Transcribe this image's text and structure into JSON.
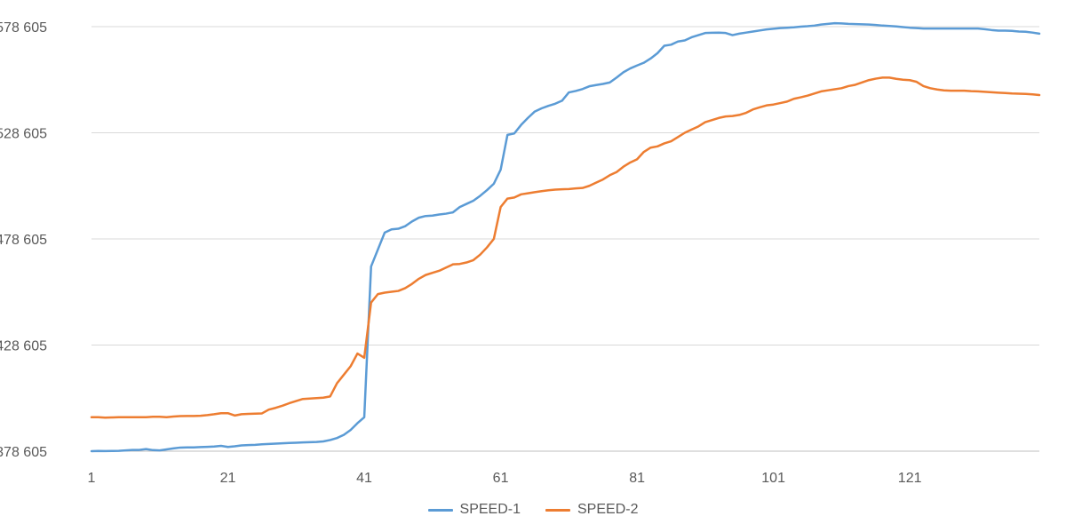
{
  "chart_data": {
    "type": "line",
    "title": "",
    "xlabel": "",
    "ylabel": "",
    "x_ticks": [
      "1",
      "21",
      "41",
      "61",
      "81",
      "101",
      "121"
    ],
    "x_tick_values": [
      1,
      21,
      41,
      61,
      81,
      101,
      121
    ],
    "y_ticks": [
      "378 605",
      "428 605",
      "478 605",
      "528 605",
      "578 605"
    ],
    "y_tick_values": [
      378605,
      428605,
      478605,
      528605,
      578605
    ],
    "xlim": [
      1,
      140
    ],
    "ylim": [
      378605,
      578605
    ],
    "grid": true,
    "legend_position": "bottom",
    "colors": {
      "SPEED-1": "#5b9bd5",
      "SPEED-2": "#ed7d31",
      "gridline": "#d9d9d9",
      "axis": "#bfbfbf",
      "text": "#595959"
    },
    "series": [
      {
        "name": "SPEED-1",
        "x": [
          1,
          2,
          3,
          4,
          5,
          6,
          7,
          8,
          9,
          10,
          11,
          12,
          13,
          14,
          15,
          16,
          17,
          18,
          19,
          20,
          21,
          22,
          23,
          24,
          25,
          26,
          27,
          28,
          29,
          30,
          31,
          32,
          33,
          34,
          35,
          36,
          37,
          38,
          39,
          40,
          41,
          42,
          43,
          44,
          45,
          46,
          47,
          48,
          49,
          50,
          51,
          52,
          53,
          54,
          55,
          56,
          57,
          58,
          59,
          60,
          61,
          62,
          63,
          64,
          65,
          66,
          67,
          68,
          69,
          70,
          71,
          72,
          73,
          74,
          75,
          76,
          77,
          78,
          79,
          80,
          81,
          82,
          83,
          84,
          85,
          86,
          87,
          88,
          89,
          90,
          91,
          92,
          93,
          94,
          95,
          96,
          97,
          98,
          99,
          100,
          101,
          102,
          103,
          104,
          105,
          106,
          107,
          108,
          109,
          110,
          111,
          112,
          113,
          114,
          115,
          116,
          117,
          118,
          119,
          120,
          121,
          122,
          123,
          124,
          125,
          126,
          127,
          128,
          129,
          130,
          131,
          132,
          133,
          134,
          135,
          136,
          137,
          138,
          139,
          140
        ],
        "values": [
          378605,
          378705,
          378655,
          378705,
          378755,
          378955,
          379205,
          379205,
          379605,
          379105,
          378955,
          379455,
          379905,
          380305,
          380405,
          380405,
          380555,
          380655,
          380805,
          381105,
          380605,
          380905,
          381305,
          381505,
          381605,
          381855,
          382005,
          382155,
          382305,
          382455,
          382605,
          382755,
          382855,
          382955,
          383205,
          383855,
          384805,
          386305,
          388605,
          391805,
          394605,
          465605,
          473605,
          481605,
          483105,
          483405,
          484605,
          486805,
          488605,
          489405,
          489605,
          490105,
          490505,
          491105,
          493605,
          495105,
          496605,
          498905,
          501605,
          504605,
          511205,
          527605,
          528305,
          532305,
          535605,
          538605,
          540105,
          541305,
          542305,
          543705,
          547605,
          548305,
          549205,
          550505,
          551105,
          551605,
          552305,
          554605,
          557105,
          558905,
          560305,
          561605,
          563605,
          566105,
          569605,
          570105,
          571605,
          572105,
          573605,
          574605,
          575605,
          575705,
          575805,
          575605,
          574605,
          575305,
          575805,
          576305,
          576805,
          577305,
          577605,
          577905,
          578105,
          578305,
          578605,
          578805,
          579105,
          579605,
          579905,
          580205,
          580105,
          579905,
          579805,
          579705,
          579605,
          579405,
          579105,
          578905,
          578705,
          578405,
          578105,
          577905,
          577705,
          577705,
          577705,
          577705,
          577705,
          577705,
          577705,
          577705,
          577705,
          577405,
          577005,
          576705,
          576705,
          576605,
          576305,
          576205,
          575805,
          575305
        ]
      },
      {
        "name": "SPEED-2",
        "x": [
          1,
          2,
          3,
          4,
          5,
          6,
          7,
          8,
          9,
          10,
          11,
          12,
          13,
          14,
          15,
          16,
          17,
          18,
          19,
          20,
          21,
          22,
          23,
          24,
          25,
          26,
          27,
          28,
          29,
          30,
          31,
          32,
          33,
          34,
          35,
          36,
          37,
          38,
          39,
          40,
          41,
          42,
          43,
          44,
          45,
          46,
          47,
          48,
          49,
          50,
          51,
          52,
          53,
          54,
          55,
          56,
          57,
          58,
          59,
          60,
          61,
          62,
          63,
          64,
          65,
          66,
          67,
          68,
          69,
          70,
          71,
          72,
          73,
          74,
          75,
          76,
          77,
          78,
          79,
          80,
          81,
          82,
          83,
          84,
          85,
          86,
          87,
          88,
          89,
          90,
          91,
          92,
          93,
          94,
          95,
          96,
          97,
          98,
          99,
          100,
          101,
          102,
          103,
          104,
          105,
          106,
          107,
          108,
          109,
          110,
          111,
          112,
          113,
          114,
          115,
          116,
          117,
          118,
          119,
          120,
          121,
          122,
          123,
          124,
          125,
          126,
          127,
          128,
          129,
          130,
          131,
          132,
          133,
          134,
          135,
          136,
          137,
          138,
          139,
          140
        ],
        "values": [
          394605,
          394605,
          394405,
          394505,
          394605,
          394605,
          394605,
          394605,
          394605,
          394805,
          394805,
          394605,
          394905,
          395105,
          395205,
          395205,
          395305,
          395605,
          396005,
          396505,
          396505,
          395405,
          396005,
          396205,
          396305,
          396405,
          398205,
          399005,
          400005,
          401205,
          402205,
          403205,
          403405,
          403605,
          403805,
          404405,
          410605,
          414605,
          418605,
          424605,
          422605,
          448605,
          452605,
          453305,
          453705,
          454105,
          455405,
          457405,
          459805,
          461605,
          462605,
          463605,
          465105,
          466605,
          466805,
          467505,
          468605,
          471205,
          474605,
          478605,
          493605,
          497605,
          498105,
          499605,
          500105,
          500605,
          501105,
          501505,
          501805,
          502005,
          502105,
          502405,
          502605,
          503605,
          505105,
          506605,
          508605,
          510105,
          512605,
          514605,
          516105,
          519605,
          521605,
          522205,
          523605,
          524605,
          526605,
          528605,
          530105,
          531605,
          533605,
          534605,
          535605,
          536305,
          536505,
          537005,
          538005,
          539605,
          540605,
          541505,
          541905,
          542605,
          543305,
          544605,
          545305,
          546105,
          547105,
          548105,
          548605,
          549105,
          549605,
          550605,
          551205,
          552305,
          553405,
          554105,
          554605,
          554605,
          554005,
          553605,
          553405,
          552605,
          550605,
          549605,
          549005,
          548605,
          548405,
          548405,
          548405,
          548205,
          548105,
          547905,
          547705,
          547505,
          547305,
          547105,
          547005,
          546905,
          546705,
          546405
        ]
      }
    ]
  }
}
